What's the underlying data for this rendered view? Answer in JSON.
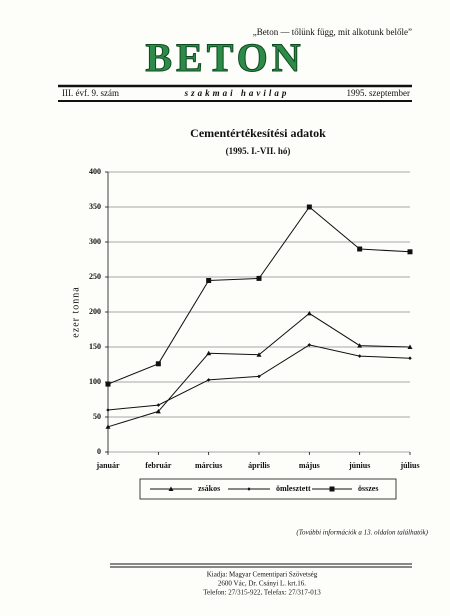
{
  "header": {
    "motto": "„Beton — tőlünk függ, mit alkotunk belőle”",
    "logo": "BETON",
    "issue": "III. évf. 9. szám",
    "kind": "szakmai havilap",
    "date": "1995. szeptember"
  },
  "chart_data": {
    "type": "line",
    "title": "Cementértékesítési adatok",
    "subtitle": "(1995. I.-VII. hó)",
    "y_label": "ezer tonna",
    "categories": [
      "január",
      "február",
      "március",
      "április",
      "május",
      "június",
      "július"
    ],
    "series": [
      {
        "name": "zsákos",
        "color": "#111",
        "marker": "triangle",
        "values": [
          36,
          58,
          141,
          139,
          198,
          152,
          150
        ]
      },
      {
        "name": "ömlesztett",
        "color": "#111",
        "marker": "diamond",
        "values": [
          60,
          67,
          103,
          108,
          153,
          137,
          134
        ]
      },
      {
        "name": "összes",
        "color": "#111",
        "marker": "square",
        "values": [
          97,
          126,
          245,
          248,
          350,
          290,
          286
        ]
      }
    ],
    "ylim": [
      0,
      400
    ],
    "yticks": [
      0,
      50,
      100,
      150,
      200,
      250,
      300,
      350,
      400
    ],
    "grid": true
  },
  "note": "(További információk a 13. oldalon találhatók)",
  "footer": {
    "lines": [
      "Kiadja: Magyar Cementipari Szövetség",
      "2600 Vác, Dr. Csányi L. krt.16.",
      "Telefon: 27/315-922, Telefax: 27/317-013"
    ]
  }
}
